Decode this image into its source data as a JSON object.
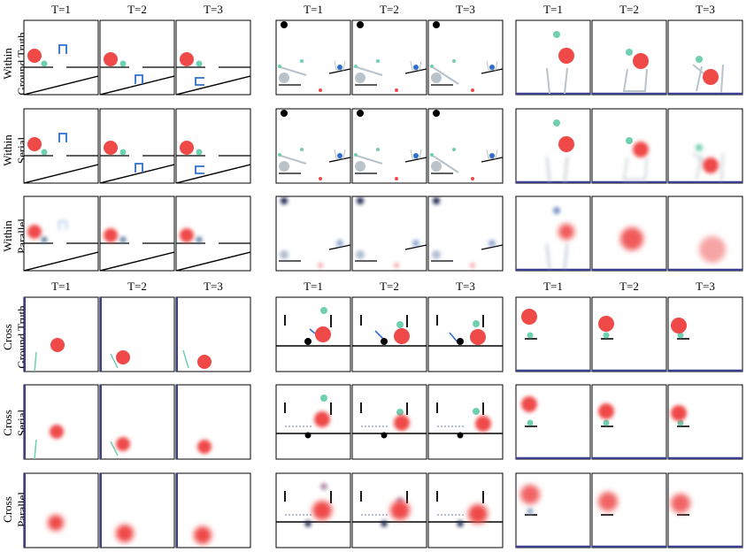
{
  "column_headers": [
    "T=1",
    "T=2",
    "T=3"
  ],
  "section_top": {
    "rows": [
      {
        "line1": "Within",
        "line2": "Ground Truth",
        "mode": "gt"
      },
      {
        "line1": "Within",
        "line2": "Serial",
        "mode": "serial"
      },
      {
        "line1": "Within",
        "line2": "Parallel",
        "mode": "parallel"
      }
    ]
  },
  "section_bottom": {
    "rows": [
      {
        "line1": "Cross",
        "line2": "Ground Truth",
        "mode": "gt"
      },
      {
        "line1": "Cross",
        "line2": "Serial",
        "mode": "serial"
      },
      {
        "line1": "Cross",
        "line2": "Parallel",
        "mode": "parallel"
      }
    ]
  },
  "colors": {
    "red_ball": "#ef4a48",
    "green_ball": "#6fcfb1",
    "blue_object": "#2f6fd0",
    "grey_object": "#b9c3c9",
    "black": "#000000",
    "floor_blue": "#3a3f8f"
  }
}
